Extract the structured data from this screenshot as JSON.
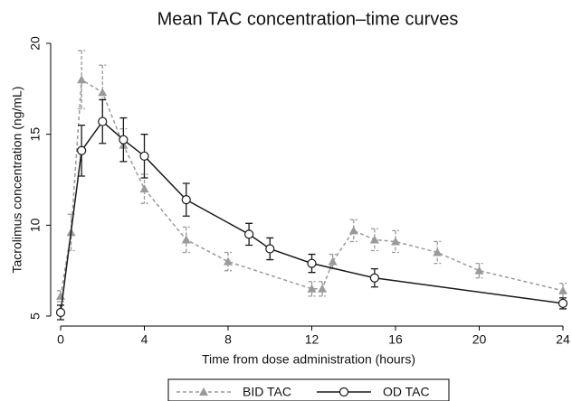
{
  "chart_data": {
    "type": "line",
    "title": "Mean TAC concentration–time curves",
    "x_label": "Time from dose administration (hours)",
    "y_label": "Tacrolimus concentration (ng/mL)",
    "xlim": [
      0,
      24
    ],
    "xticks": [
      0,
      4,
      8,
      12,
      16,
      20,
      24
    ],
    "ylim": [
      5,
      20
    ],
    "yticks": [
      5,
      10,
      15,
      20
    ],
    "grid": false,
    "legend": "bottom",
    "series": [
      {
        "name": "BID TAC",
        "color": "#9a9a9a",
        "dash": true,
        "marker": "triangle",
        "x": [
          0,
          0.5,
          1,
          2,
          3,
          4,
          6,
          8,
          12,
          12.5,
          13,
          14,
          15,
          16,
          18,
          20,
          24
        ],
        "values": [
          6.1,
          9.6,
          18.0,
          17.3,
          14.4,
          12.0,
          9.2,
          8.0,
          6.5,
          6.5,
          8.0,
          9.7,
          9.2,
          9.1,
          8.5,
          7.5,
          6.4
        ],
        "errors": [
          0.3,
          1.0,
          1.6,
          1.5,
          0.9,
          0.8,
          0.7,
          0.5,
          0.4,
          0.4,
          0.4,
          0.6,
          0.6,
          0.6,
          0.6,
          0.4,
          0.4
        ]
      },
      {
        "name": "OD TAC",
        "color": "#1a1a1a",
        "dash": false,
        "marker": "circle",
        "x": [
          0,
          1,
          2,
          3,
          4,
          6,
          9,
          10,
          12,
          15,
          24
        ],
        "values": [
          5.2,
          14.1,
          15.7,
          14.7,
          13.8,
          11.4,
          9.5,
          8.7,
          7.9,
          7.1,
          5.7
        ],
        "errors": [
          0.4,
          1.4,
          1.2,
          1.2,
          1.2,
          0.9,
          0.6,
          0.6,
          0.5,
          0.5,
          0.3
        ]
      }
    ]
  }
}
